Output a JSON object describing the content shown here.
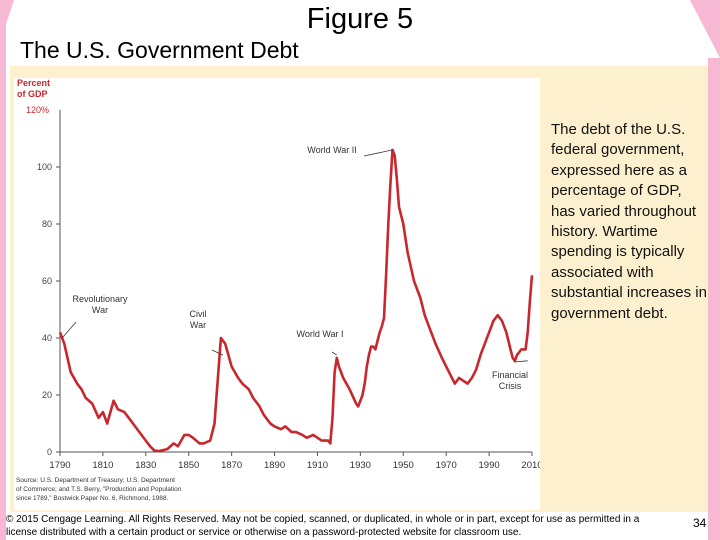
{
  "slide": {
    "title": "Figure 5",
    "subtitle": "The U.S. Government Debt",
    "description": "The debt of the U.S. federal government, expressed here as a percentage of GDP, has varied throughout history. Wartime spending is typically associated with substantial increases in government debt.",
    "footer": "© 2015 Cengage Learning. All Rights Reserved. May not be copied, scanned, or duplicated, in whole or in part, except for use as permitted in a license distributed with a certain product or service or otherwise on a password-protected website for classroom use.",
    "page_number": "34"
  },
  "colors": {
    "accent_pink": "#f7b8d4",
    "panel": "#fdf0cf",
    "series": "#c8272e",
    "axis_label": "#c8272e",
    "annotation": "#333333"
  },
  "chart_data": {
    "type": "line",
    "ylabel": "Percent of GDP",
    "ylabel_lines": [
      "Percent",
      "of GDP"
    ],
    "top_tick_label": "120%",
    "ylim": [
      0,
      120
    ],
    "xlim": [
      1790,
      2010
    ],
    "x_ticks": [
      1790,
      1810,
      1830,
      1850,
      1870,
      1890,
      1910,
      1930,
      1950,
      1970,
      1990,
      2010
    ],
    "y_ticks": [
      0,
      20,
      40,
      60,
      80,
      100
    ],
    "grid": false,
    "source": [
      "Source: U.S. Department of Treasury; U.S. Department",
      "of Commerce; and T.S. Berry, \"Production and Population",
      "since 1789,\" Bostwick Paper No. 6, Richmond, 1988."
    ],
    "annotations": [
      {
        "lines": [
          "Revolutionary",
          "War"
        ],
        "x": 1791,
        "y": 40
      },
      {
        "lines": [
          "Civil",
          "War"
        ],
        "x": 1866,
        "y": 34
      },
      {
        "lines": [
          "World War I"
        ],
        "x": 1919,
        "y": 34
      },
      {
        "lines": [
          "World War II"
        ],
        "x": 1945,
        "y": 106
      },
      {
        "lines": [
          "Financial",
          "Crisis"
        ],
        "x": 2008,
        "y": 32
      }
    ],
    "series": [
      {
        "name": "U.S. Government Debt (percent of GDP)",
        "x": [
          1790,
          1792,
          1795,
          1798,
          1800,
          1802,
          1805,
          1808,
          1810,
          1812,
          1815,
          1817,
          1820,
          1822,
          1825,
          1828,
          1830,
          1832,
          1834,
          1836,
          1840,
          1843,
          1845,
          1848,
          1850,
          1852,
          1855,
          1857,
          1860,
          1862,
          1863,
          1865,
          1867,
          1870,
          1873,
          1875,
          1878,
          1880,
          1883,
          1885,
          1888,
          1890,
          1893,
          1895,
          1898,
          1900,
          1903,
          1905,
          1908,
          1910,
          1912,
          1915,
          1916,
          1917,
          1918,
          1919,
          1920,
          1921,
          1922,
          1925,
          1928,
          1929,
          1930,
          1931,
          1932,
          1933,
          1934,
          1935,
          1936,
          1937,
          1938,
          1939,
          1940,
          1941,
          1942,
          1943,
          1944,
          1945,
          1946,
          1947,
          1948,
          1950,
          1952,
          1955,
          1958,
          1960,
          1962,
          1965,
          1968,
          1970,
          1972,
          1974,
          1976,
          1978,
          1980,
          1982,
          1984,
          1986,
          1988,
          1990,
          1992,
          1994,
          1996,
          1998,
          2000,
          2001,
          2002,
          2003,
          2005,
          2007,
          2008,
          2009,
          2010
        ],
        "values": [
          42,
          38,
          28,
          24,
          22,
          19,
          17,
          12,
          14,
          10,
          18,
          15,
          14,
          12,
          9,
          6,
          4,
          2,
          0.5,
          0.3,
          1,
          3,
          2,
          6,
          6,
          5,
          3,
          3,
          4,
          10,
          20,
          40,
          38,
          30,
          26,
          24,
          22,
          19,
          16,
          13,
          10,
          9,
          8,
          9,
          7,
          7,
          6,
          5,
          6,
          5,
          4,
          4,
          3,
          12,
          28,
          33,
          30,
          28,
          26,
          22,
          17,
          16,
          18,
          20,
          24,
          30,
          34,
          37,
          37,
          36,
          39,
          42,
          44,
          47,
          62,
          80,
          94,
          106,
          104,
          96,
          86,
          80,
          70,
          60,
          54,
          48,
          44,
          38,
          33,
          30,
          27,
          24,
          26,
          25,
          24,
          26,
          29,
          34,
          38,
          42,
          46,
          48,
          46,
          42,
          36,
          33,
          32,
          34,
          36,
          36,
          42,
          53,
          62
        ]
      }
    ]
  }
}
